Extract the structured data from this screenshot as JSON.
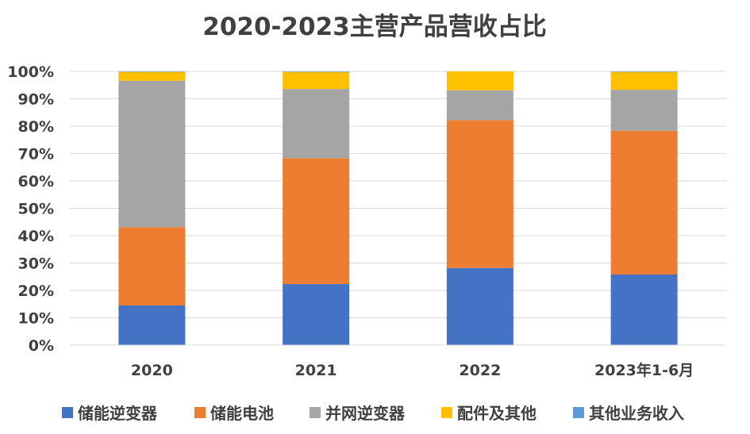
{
  "chart_data": {
    "type": "bar",
    "stacked": true,
    "title": "2020-2023主营产品营收占比",
    "xlabel": "",
    "ylabel": "",
    "ylim": [
      0,
      100
    ],
    "y_ticks": [
      "0%",
      "10%",
      "20%",
      "30%",
      "40%",
      "50%",
      "60%",
      "70%",
      "80%",
      "90%",
      "100%"
    ],
    "grid": true,
    "legend_position": "bottom",
    "categories": [
      "2020",
      "2021",
      "2022",
      "2023年1-6月"
    ],
    "series": [
      {
        "name": "储能逆变器",
        "color": "#4472c4",
        "values": [
          14.5,
          22.3,
          28.2,
          25.8
        ]
      },
      {
        "name": "储能电池",
        "color": "#ed7d31",
        "values": [
          28.6,
          46.0,
          54.0,
          52.5
        ]
      },
      {
        "name": "并网逆变器",
        "color": "#a5a5a5",
        "values": [
          53.5,
          25.3,
          10.9,
          15.0
        ]
      },
      {
        "name": "配件及其他",
        "color": "#ffc000",
        "values": [
          3.2,
          6.2,
          6.9,
          6.5
        ]
      },
      {
        "name": "其他业务收入",
        "color": "#5b9bd5",
        "values": [
          0.2,
          0.2,
          0.0,
          0.2
        ]
      }
    ]
  }
}
